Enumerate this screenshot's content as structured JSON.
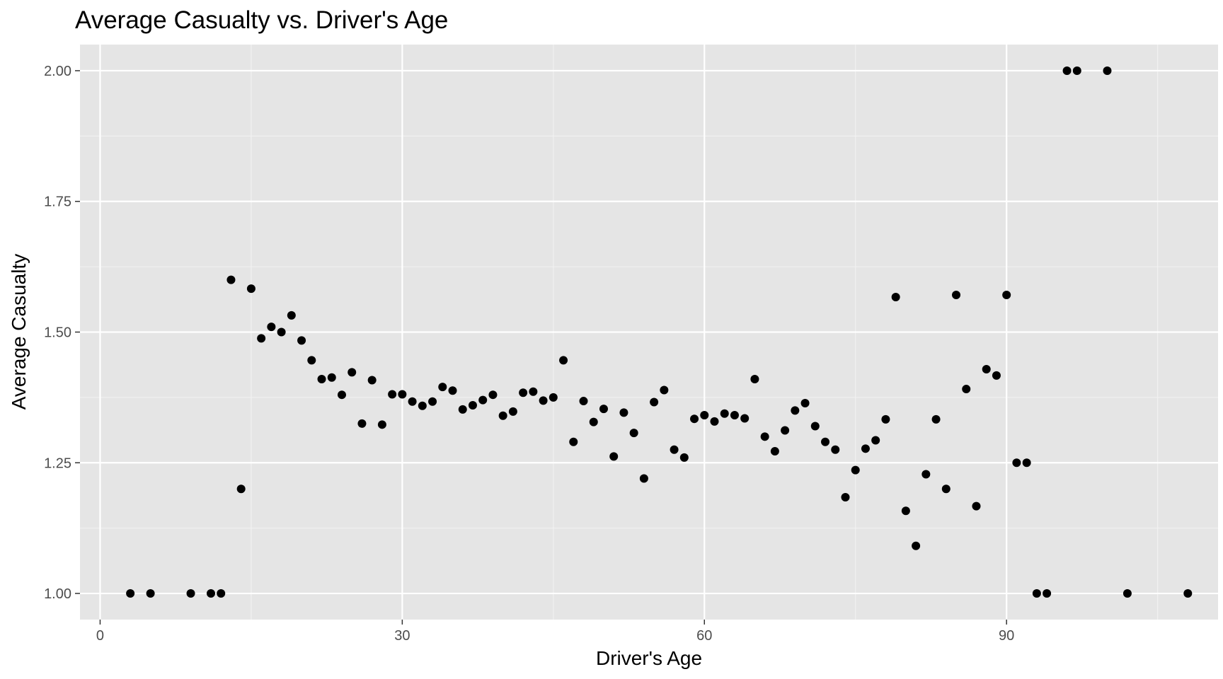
{
  "chart_data": {
    "type": "scatter",
    "title": "Average Casualty vs. Driver's Age",
    "xlabel": "Driver's Age",
    "ylabel": "Average Casualty",
    "xlim": [
      -2,
      111
    ],
    "ylim": [
      0.95,
      2.05
    ],
    "x_ticks": [
      0,
      30,
      60,
      90
    ],
    "x_tick_labels": [
      "0",
      "30",
      "60",
      "90"
    ],
    "y_ticks": [
      1.0,
      1.25,
      1.5,
      1.75,
      2.0
    ],
    "y_tick_labels": [
      "1.00",
      "1.25",
      "1.50",
      "1.75",
      "2.00"
    ],
    "grid": true,
    "points": [
      {
        "x": 3,
        "y": 1.0
      },
      {
        "x": 5,
        "y": 1.0
      },
      {
        "x": 9,
        "y": 1.0
      },
      {
        "x": 11,
        "y": 1.0
      },
      {
        "x": 12,
        "y": 1.0
      },
      {
        "x": 13,
        "y": 1.6
      },
      {
        "x": 14,
        "y": 1.2
      },
      {
        "x": 15,
        "y": 1.583
      },
      {
        "x": 16,
        "y": 1.488
      },
      {
        "x": 17,
        "y": 1.51
      },
      {
        "x": 18,
        "y": 1.5
      },
      {
        "x": 19,
        "y": 1.532
      },
      {
        "x": 20,
        "y": 1.484
      },
      {
        "x": 21,
        "y": 1.446
      },
      {
        "x": 22,
        "y": 1.41
      },
      {
        "x": 23,
        "y": 1.413
      },
      {
        "x": 24,
        "y": 1.38
      },
      {
        "x": 25,
        "y": 1.423
      },
      {
        "x": 26,
        "y": 1.325
      },
      {
        "x": 27,
        "y": 1.408
      },
      {
        "x": 28,
        "y": 1.323
      },
      {
        "x": 29,
        "y": 1.381
      },
      {
        "x": 30,
        "y": 1.381
      },
      {
        "x": 31,
        "y": 1.367
      },
      {
        "x": 32,
        "y": 1.359
      },
      {
        "x": 33,
        "y": 1.367
      },
      {
        "x": 34,
        "y": 1.395
      },
      {
        "x": 35,
        "y": 1.388
      },
      {
        "x": 36,
        "y": 1.352
      },
      {
        "x": 37,
        "y": 1.36
      },
      {
        "x": 38,
        "y": 1.37
      },
      {
        "x": 39,
        "y": 1.38
      },
      {
        "x": 40,
        "y": 1.34
      },
      {
        "x": 41,
        "y": 1.348
      },
      {
        "x": 42,
        "y": 1.384
      },
      {
        "x": 43,
        "y": 1.386
      },
      {
        "x": 44,
        "y": 1.369
      },
      {
        "x": 45,
        "y": 1.375
      },
      {
        "x": 46,
        "y": 1.446
      },
      {
        "x": 47,
        "y": 1.29
      },
      {
        "x": 48,
        "y": 1.368
      },
      {
        "x": 49,
        "y": 1.328
      },
      {
        "x": 50,
        "y": 1.353
      },
      {
        "x": 51,
        "y": 1.262
      },
      {
        "x": 52,
        "y": 1.346
      },
      {
        "x": 53,
        "y": 1.307
      },
      {
        "x": 54,
        "y": 1.22
      },
      {
        "x": 55,
        "y": 1.366
      },
      {
        "x": 56,
        "y": 1.389
      },
      {
        "x": 57,
        "y": 1.275
      },
      {
        "x": 58,
        "y": 1.26
      },
      {
        "x": 59,
        "y": 1.334
      },
      {
        "x": 60,
        "y": 1.341
      },
      {
        "x": 61,
        "y": 1.329
      },
      {
        "x": 62,
        "y": 1.344
      },
      {
        "x": 63,
        "y": 1.341
      },
      {
        "x": 64,
        "y": 1.335
      },
      {
        "x": 65,
        "y": 1.41
      },
      {
        "x": 66,
        "y": 1.3
      },
      {
        "x": 67,
        "y": 1.272
      },
      {
        "x": 68,
        "y": 1.312
      },
      {
        "x": 69,
        "y": 1.35
      },
      {
        "x": 70,
        "y": 1.364
      },
      {
        "x": 71,
        "y": 1.32
      },
      {
        "x": 72,
        "y": 1.29
      },
      {
        "x": 73,
        "y": 1.275
      },
      {
        "x": 74,
        "y": 1.184
      },
      {
        "x": 75,
        "y": 1.236
      },
      {
        "x": 76,
        "y": 1.277
      },
      {
        "x": 77,
        "y": 1.293
      },
      {
        "x": 78,
        "y": 1.333
      },
      {
        "x": 79,
        "y": 1.567
      },
      {
        "x": 80,
        "y": 1.158
      },
      {
        "x": 81,
        "y": 1.091
      },
      {
        "x": 82,
        "y": 1.228
      },
      {
        "x": 83,
        "y": 1.333
      },
      {
        "x": 84,
        "y": 1.2
      },
      {
        "x": 85,
        "y": 1.571
      },
      {
        "x": 86,
        "y": 1.391
      },
      {
        "x": 87,
        "y": 1.167
      },
      {
        "x": 88,
        "y": 1.429
      },
      {
        "x": 89,
        "y": 1.417
      },
      {
        "x": 90,
        "y": 1.571
      },
      {
        "x": 91,
        "y": 1.25
      },
      {
        "x": 92,
        "y": 1.25
      },
      {
        "x": 93,
        "y": 1.0
      },
      {
        "x": 94,
        "y": 1.0
      },
      {
        "x": 96,
        "y": 2.0
      },
      {
        "x": 97,
        "y": 2.0
      },
      {
        "x": 100,
        "y": 2.0
      },
      {
        "x": 102,
        "y": 1.0
      },
      {
        "x": 108,
        "y": 1.0
      }
    ]
  }
}
